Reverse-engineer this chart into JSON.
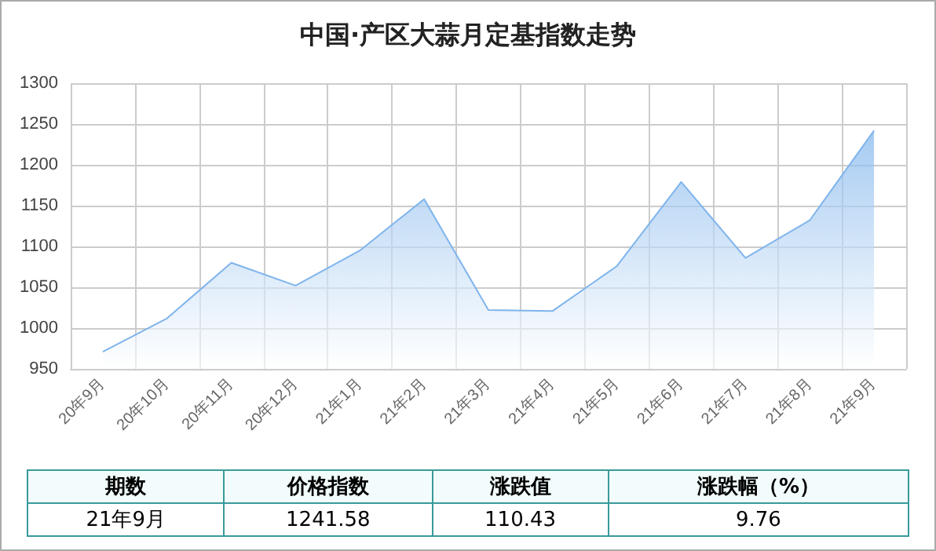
{
  "chart_data": {
    "type": "area",
    "title": "中国·产区大蒜月定基指数走势",
    "categories": [
      "20年9月",
      "20年10月",
      "20年11月",
      "20年12月",
      "21年1月",
      "21年2月",
      "21年3月",
      "21年4月",
      "21年5月",
      "21年6月",
      "21年7月",
      "21年8月",
      "21年9月"
    ],
    "series": [
      {
        "color": "#7fb4ec",
        "values": [
          971,
          1012,
          1080,
          1052,
          1095,
          1158,
          1022,
          1021,
          1076,
          1179,
          1086,
          1132,
          1242
        ]
      }
    ],
    "ylim": [
      950,
      1300
    ],
    "yticks": [
      950,
      1000,
      1050,
      1100,
      1150,
      1200,
      1250,
      1300
    ],
    "grid": true,
    "annotations": [
      "期数",
      "价格指数",
      "涨跌值",
      "涨跌幅（%）",
      "21年9月",
      "1241.58",
      "110.43",
      "9.76"
    ]
  }
}
